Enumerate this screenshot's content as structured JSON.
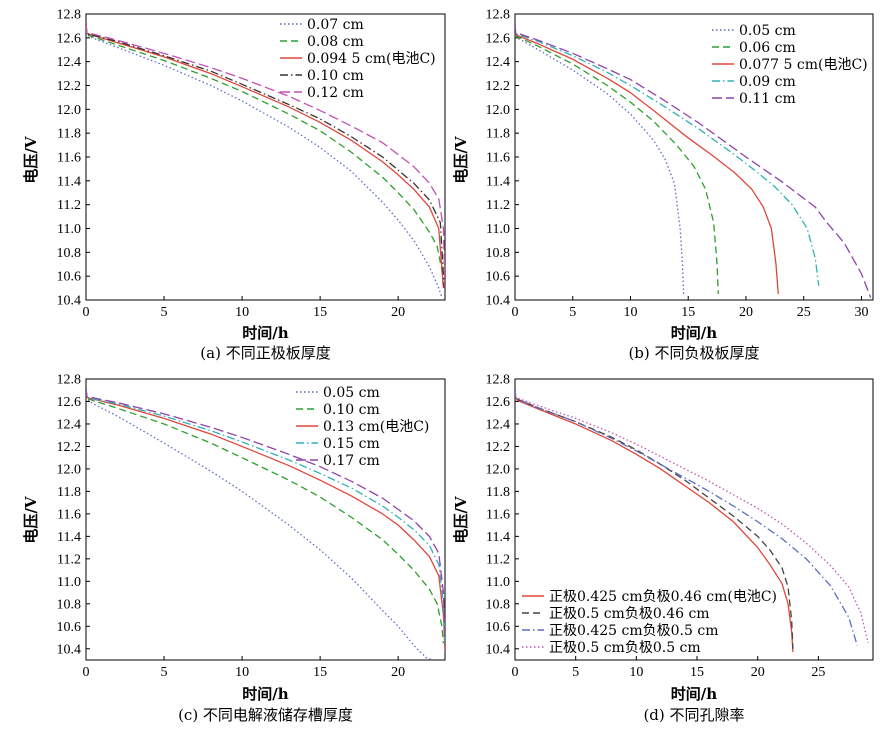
{
  "chart_data": [
    {
      "id": "a",
      "type": "line",
      "caption": "(a) 不同正极板厚度",
      "xlabel": "时间/h",
      "ylabel": "电压/V",
      "xlim": [
        0,
        23
      ],
      "ylim": [
        10.4,
        12.8
      ],
      "xticks": [
        0,
        5,
        10,
        15,
        20
      ],
      "yticks": [
        10.4,
        10.6,
        10.8,
        11.0,
        11.2,
        11.4,
        11.6,
        11.8,
        12.0,
        12.2,
        12.4,
        12.6,
        12.8
      ],
      "grid": false,
      "legend_position": "top-right",
      "series": [
        {
          "name": "0.07 cm",
          "color": "#5a6fc4",
          "dash": "dotted",
          "x": [
            0,
            0.05,
            0.2,
            2,
            5,
            8,
            10,
            13,
            15,
            17,
            19,
            20,
            21,
            22,
            22.6,
            22.8
          ],
          "y": [
            12.72,
            12.64,
            12.61,
            12.52,
            12.37,
            12.2,
            12.07,
            11.85,
            11.68,
            11.48,
            11.22,
            11.07,
            10.9,
            10.68,
            10.5,
            10.42
          ]
        },
        {
          "name": "0.08 cm",
          "color": "#2ca02c",
          "dash": "dashed",
          "x": [
            0,
            0.05,
            0.2,
            2,
            5,
            8,
            10,
            13,
            15,
            17,
            19,
            20,
            21,
            22,
            22.5,
            22.8,
            22.9
          ],
          "y": [
            12.72,
            12.64,
            12.62,
            12.54,
            12.41,
            12.26,
            12.15,
            11.96,
            11.82,
            11.64,
            11.43,
            11.3,
            11.16,
            10.97,
            10.85,
            10.65,
            10.5
          ]
        },
        {
          "name": "0.094 5 cm(电池C)",
          "color": "#e0463a",
          "dash": "solid",
          "x": [
            0,
            0.05,
            0.2,
            2,
            5,
            8,
            10,
            13,
            15,
            17,
            19,
            20,
            21,
            22,
            22.6,
            22.9
          ],
          "y": [
            12.72,
            12.64,
            12.63,
            12.56,
            12.44,
            12.3,
            12.19,
            12.02,
            11.89,
            11.74,
            11.56,
            11.45,
            11.33,
            11.18,
            11.0,
            10.5
          ]
        },
        {
          "name": "0.10 cm",
          "color": "#333333",
          "dash": "dashdot",
          "x": [
            0,
            0.05,
            0.2,
            2,
            5,
            8,
            10,
            13,
            15,
            17,
            19,
            20,
            21,
            22,
            22.7,
            22.95
          ],
          "y": [
            12.72,
            12.64,
            12.63,
            12.57,
            12.45,
            12.32,
            12.21,
            12.04,
            11.92,
            11.77,
            11.6,
            11.49,
            11.38,
            11.24,
            11.05,
            10.5
          ]
        },
        {
          "name": "0.12 cm",
          "color": "#c251b5",
          "dash": "longdash",
          "x": [
            0,
            0.05,
            0.2,
            2,
            5,
            8,
            10,
            13,
            15,
            17,
            19,
            20,
            21,
            22,
            22.6,
            22.9,
            23.0
          ],
          "y": [
            12.72,
            12.64,
            12.64,
            12.58,
            12.47,
            12.35,
            12.26,
            12.11,
            11.99,
            11.86,
            11.72,
            11.62,
            11.52,
            11.38,
            11.25,
            11.0,
            10.5
          ]
        }
      ]
    },
    {
      "id": "b",
      "type": "line",
      "caption": "(b) 不同负极板厚度",
      "xlabel": "时间/h",
      "ylabel": "电压/V",
      "xlim": [
        0,
        31
      ],
      "ylim": [
        10.4,
        12.8
      ],
      "xticks": [
        0,
        5,
        10,
        15,
        20,
        25,
        30
      ],
      "yticks": [
        10.4,
        10.6,
        10.8,
        11.0,
        11.2,
        11.4,
        11.6,
        11.8,
        12.0,
        12.2,
        12.4,
        12.6,
        12.8
      ],
      "grid": false,
      "legend_position": "top-right",
      "series": [
        {
          "name": "0.05 cm",
          "color": "#5a6fc4",
          "dash": "dotted",
          "x": [
            0,
            0.05,
            0.2,
            2,
            5,
            8,
            10,
            12,
            13,
            13.8,
            14.3,
            14.5,
            14.6
          ],
          "y": [
            12.72,
            12.64,
            12.6,
            12.5,
            12.33,
            12.13,
            11.96,
            11.74,
            11.58,
            11.38,
            11.0,
            10.7,
            10.45
          ]
        },
        {
          "name": "0.06 cm",
          "color": "#2ca02c",
          "dash": "dashed",
          "x": [
            0,
            0.05,
            0.2,
            2,
            5,
            8,
            10,
            12,
            14,
            15.5,
            16.5,
            17.2,
            17.5,
            17.6
          ],
          "y": [
            12.72,
            12.64,
            12.61,
            12.53,
            12.38,
            12.2,
            12.06,
            11.9,
            11.7,
            11.52,
            11.33,
            11.05,
            10.7,
            10.45
          ]
        },
        {
          "name": "0.077 5 cm(电池C)",
          "color": "#e0463a",
          "dash": "solid",
          "x": [
            0,
            0.05,
            0.2,
            2,
            5,
            8,
            10,
            12,
            15,
            17,
            19,
            20.5,
            21.5,
            22.2,
            22.6,
            22.8
          ],
          "y": [
            12.72,
            12.64,
            12.62,
            12.55,
            12.42,
            12.26,
            12.14,
            11.99,
            11.76,
            11.62,
            11.47,
            11.33,
            11.18,
            11.0,
            10.7,
            10.45
          ]
        },
        {
          "name": "0.09 cm",
          "color": "#30b0b8",
          "dash": "dashdot",
          "x": [
            0,
            0.05,
            0.2,
            2,
            5,
            8,
            10,
            13,
            16,
            19,
            21,
            22.5,
            24,
            25.3,
            26.0,
            26.3
          ],
          "y": [
            12.72,
            12.64,
            12.63,
            12.57,
            12.45,
            12.31,
            12.2,
            12.02,
            11.83,
            11.62,
            11.47,
            11.35,
            11.2,
            11.0,
            10.75,
            10.52
          ]
        },
        {
          "name": "0.11 cm",
          "color": "#8e44ad",
          "dash": "longdash",
          "x": [
            0,
            0.05,
            0.2,
            2,
            5,
            8,
            10,
            13,
            16,
            20,
            23,
            26,
            27,
            28.5,
            30,
            30.8
          ],
          "y": [
            12.72,
            12.64,
            12.64,
            12.58,
            12.47,
            12.34,
            12.25,
            12.07,
            11.88,
            11.6,
            11.4,
            11.18,
            11.05,
            10.88,
            10.62,
            10.42
          ]
        }
      ]
    },
    {
      "id": "c",
      "type": "line",
      "caption": "(c) 不同电解液储存槽厚度",
      "xlabel": "时间/h",
      "ylabel": "电压/V",
      "xlim": [
        0,
        23
      ],
      "ylim": [
        10.3,
        12.8
      ],
      "xticks": [
        0,
        5,
        10,
        15,
        20
      ],
      "yticks": [
        10.4,
        10.6,
        10.8,
        11.0,
        11.2,
        11.4,
        11.6,
        11.8,
        12.0,
        12.2,
        12.4,
        12.6,
        12.8
      ],
      "grid": false,
      "legend_position": "top-right",
      "series": [
        {
          "name": "0.05 cm",
          "color": "#5a6fc4",
          "dash": "dotted",
          "x": [
            0,
            0.05,
            0.2,
            2,
            5,
            8,
            10,
            13,
            15,
            17,
            19,
            20,
            21,
            21.8,
            22.2
          ],
          "y": [
            12.72,
            12.64,
            12.6,
            12.47,
            12.23,
            11.98,
            11.8,
            11.5,
            11.28,
            11.03,
            10.74,
            10.6,
            10.43,
            10.32,
            10.3
          ]
        },
        {
          "name": "0.10 cm",
          "color": "#2ca02c",
          "dash": "dashed",
          "x": [
            0,
            0.05,
            0.2,
            2,
            5,
            8,
            10,
            13,
            15,
            17,
            19,
            20,
            21,
            22,
            22.5,
            22.8,
            22.9
          ],
          "y": [
            12.72,
            12.64,
            12.62,
            12.54,
            12.4,
            12.23,
            12.1,
            11.9,
            11.75,
            11.57,
            11.37,
            11.24,
            11.1,
            10.93,
            10.8,
            10.6,
            10.45
          ]
        },
        {
          "name": "0.13 cm(电池C)",
          "color": "#e0463a",
          "dash": "solid",
          "x": [
            0,
            0.05,
            0.2,
            2,
            5,
            8,
            10,
            13,
            15,
            17,
            19,
            20,
            21,
            22,
            22.6,
            22.9,
            23.0
          ],
          "y": [
            12.72,
            12.64,
            12.63,
            12.57,
            12.45,
            12.31,
            12.2,
            12.03,
            11.9,
            11.76,
            11.6,
            11.5,
            11.37,
            11.22,
            11.05,
            10.7,
            10.38
          ]
        },
        {
          "name": "0.15 cm",
          "color": "#30b0b8",
          "dash": "dashdot",
          "x": [
            0,
            0.05,
            0.2,
            2,
            5,
            8,
            10,
            13,
            15,
            17,
            19,
            20,
            21,
            22,
            22.6,
            22.9,
            23.0
          ],
          "y": [
            12.72,
            12.64,
            12.63,
            12.58,
            12.47,
            12.34,
            12.24,
            12.08,
            11.96,
            11.83,
            11.67,
            11.57,
            11.46,
            11.32,
            11.15,
            10.8,
            10.45
          ]
        },
        {
          "name": "0.17 cm",
          "color": "#8e44ad",
          "dash": "longdash",
          "x": [
            0,
            0.05,
            0.2,
            2,
            5,
            8,
            10,
            13,
            15,
            17,
            19,
            20,
            21,
            22,
            22.6,
            22.9,
            23.0
          ],
          "y": [
            12.72,
            12.64,
            12.64,
            12.59,
            12.49,
            12.37,
            12.28,
            12.13,
            12.02,
            11.89,
            11.74,
            11.64,
            11.54,
            11.4,
            11.25,
            10.9,
            10.5
          ]
        }
      ]
    },
    {
      "id": "d",
      "type": "line",
      "caption": "(d) 不同孔隙率",
      "xlabel": "时间/h",
      "ylabel": "电压/V",
      "xlim": [
        0,
        29.5
      ],
      "ylim": [
        10.3,
        12.8
      ],
      "xticks": [
        0,
        5,
        10,
        15,
        20,
        25
      ],
      "yticks": [
        10.4,
        10.6,
        10.8,
        11.0,
        11.2,
        11.4,
        11.6,
        11.8,
        12.0,
        12.2,
        12.4,
        12.6,
        12.8
      ],
      "grid": false,
      "legend_position": "bottom-left",
      "series": [
        {
          "name": "正极0.425 cm负极0.46 cm(电池C)",
          "color": "#e0463a",
          "dash": "solid",
          "x": [
            0,
            0.05,
            0.2,
            2,
            5,
            8,
            10,
            12,
            14,
            16,
            18,
            20,
            21,
            22,
            22.5,
            22.8,
            22.9
          ],
          "y": [
            12.72,
            12.64,
            12.61,
            12.53,
            12.4,
            12.25,
            12.13,
            12.0,
            11.85,
            11.7,
            11.53,
            11.3,
            11.15,
            10.98,
            10.8,
            10.55,
            10.37
          ]
        },
        {
          "name": "正极0.5 cm负极0.46 cm",
          "color": "#444444",
          "dash": "dashed",
          "x": [
            0,
            0.05,
            0.2,
            2,
            5,
            8,
            10,
            12,
            14,
            16,
            18,
            20,
            21,
            22,
            22.5,
            22.8,
            22.9
          ],
          "y": [
            12.72,
            12.64,
            12.62,
            12.54,
            12.42,
            12.28,
            12.17,
            12.04,
            11.9,
            11.74,
            11.58,
            11.4,
            11.28,
            11.12,
            10.95,
            10.65,
            10.4
          ]
        },
        {
          "name": "正极0.425 cm负极0.5 cm",
          "color": "#5a6fc4",
          "dash": "dashdot",
          "x": [
            0,
            0.05,
            0.2,
            2,
            5,
            8,
            10,
            12,
            14,
            16,
            18,
            20,
            22,
            24,
            26,
            27.5,
            28.2
          ],
          "y": [
            12.72,
            12.64,
            12.62,
            12.54,
            12.42,
            12.27,
            12.16,
            12.04,
            11.92,
            11.8,
            11.67,
            11.53,
            11.38,
            11.2,
            10.96,
            10.68,
            10.43
          ]
        },
        {
          "name": "正极0.5 cm负极0.5 cm",
          "color": "#c251b5",
          "dash": "dotted",
          "x": [
            0,
            0.05,
            0.2,
            2,
            5,
            8,
            10,
            12,
            14,
            16,
            18,
            20,
            22,
            24,
            26,
            27.5,
            28.5,
            29.1
          ],
          "y": [
            12.72,
            12.64,
            12.63,
            12.56,
            12.45,
            12.32,
            12.22,
            12.11,
            12.0,
            11.89,
            11.77,
            11.65,
            11.51,
            11.34,
            11.14,
            10.95,
            10.72,
            10.45
          ]
        }
      ]
    }
  ]
}
